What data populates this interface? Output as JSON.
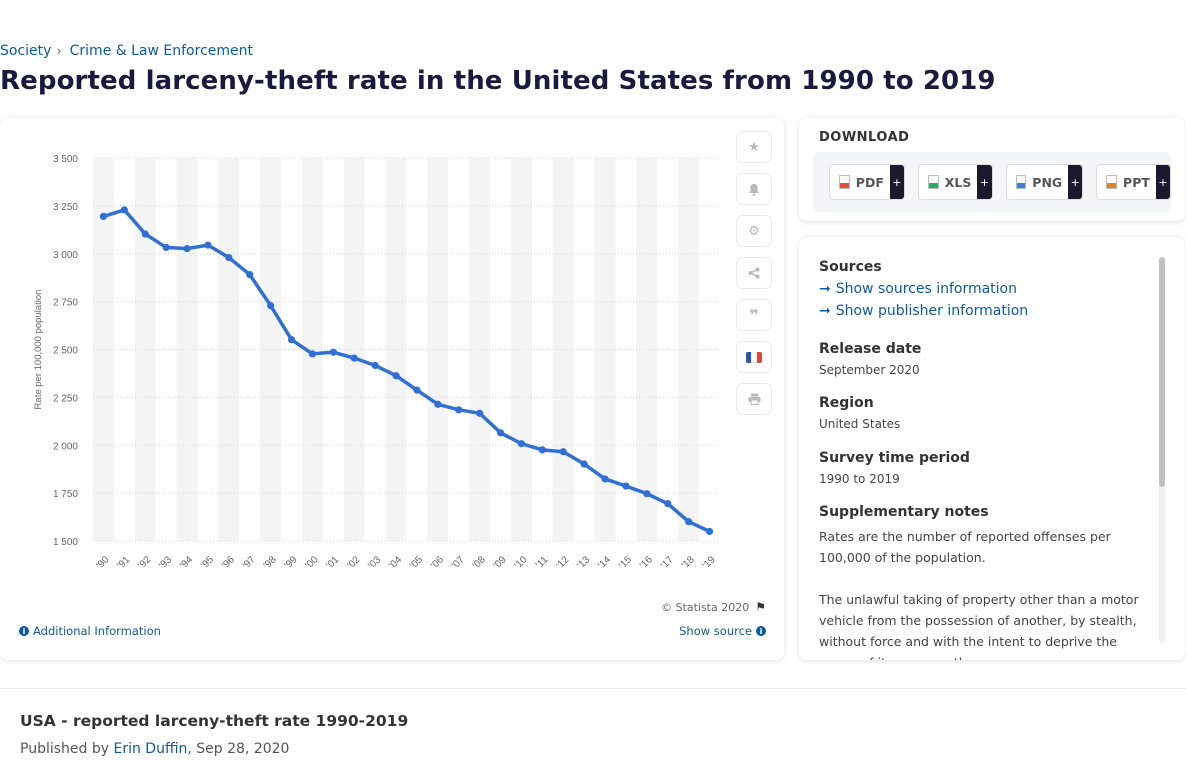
{
  "breadcrumb": {
    "item1": "Society",
    "item2": "Crime & Law Enforcement"
  },
  "page_title": "Reported larceny-theft rate in the United States from 1990 to 2019",
  "chart_footer": {
    "copyright": "© Statista 2020",
    "additional_info": "Additional Information",
    "show_source": "Show source"
  },
  "download": {
    "title": "DOWNLOAD",
    "buttons": [
      {
        "label": "PDF",
        "color": "#e74c3c"
      },
      {
        "label": "XLS",
        "color": "#27ae60"
      },
      {
        "label": "PNG",
        "color": "#3b7dd8"
      },
      {
        "label": "PPT",
        "color": "#e67e22"
      }
    ],
    "plus": "+"
  },
  "info": {
    "sources_title": "Sources",
    "show_sources": "Show sources information",
    "show_publisher": "Show publisher information",
    "release_title": "Release date",
    "release_value": "September 2020",
    "region_title": "Region",
    "region_value": "United States",
    "survey_title": "Survey time period",
    "survey_value": "1990 to 2019",
    "notes_title": "Supplementary notes",
    "notes_p1": "Rates are the number of reported offenses per 100,000 of the population.",
    "notes_p2": "The unlawful taking of property other than a motor vehicle from the possession of another, by stealth, without force and with the intent to deprive the owner of it permanently."
  },
  "bottom": {
    "title": "USA - reported larceny-theft rate 1990-2019",
    "published_prefix": "Published by",
    "author": "Erin Duffin",
    "date": ", Sep 28, 2020"
  },
  "tools": [
    "star-icon",
    "bell-icon",
    "gear-icon",
    "share-icon",
    "quote-icon",
    "french-flag-icon",
    "print-icon"
  ],
  "accent_color": "#2f6fd6",
  "chart_data": {
    "type": "line",
    "title": "",
    "xlabel": "",
    "ylabel": "Rate per 100,000 population",
    "ylim": [
      1500,
      3500
    ],
    "yticks": [
      1500,
      1750,
      2000,
      2250,
      2500,
      2750,
      3000,
      3250,
      3500
    ],
    "ytick_labels": [
      "1 500",
      "1 750",
      "2 000",
      "2 250",
      "2 500",
      "2 750",
      "3 000",
      "3 250",
      "3 500"
    ],
    "categories": [
      "'90",
      "'91",
      "'92",
      "'93",
      "'94",
      "'95",
      "'96",
      "'97",
      "'98",
      "'99",
      "'00",
      "'01",
      "'02",
      "'03",
      "'04",
      "'05",
      "'06",
      "'07",
      "'08",
      "'09",
      "'10",
      "'11",
      "'12",
      "'13",
      "'14",
      "'15",
      "'16",
      "'17",
      "'18",
      "'19"
    ],
    "series": [
      {
        "values": [
          3195,
          3229,
          3103,
          3033,
          3027,
          3045,
          2980,
          2891,
          2729,
          2551,
          2477,
          2486,
          2455,
          2417,
          2363,
          2288,
          2214,
          2185,
          2167,
          2065,
          2008,
          1976,
          1966,
          1902,
          1824,
          1787,
          1747,
          1695,
          1601,
          1550
        ],
        "color": "#2f6fd6"
      }
    ],
    "grid": true,
    "legend": "none"
  }
}
